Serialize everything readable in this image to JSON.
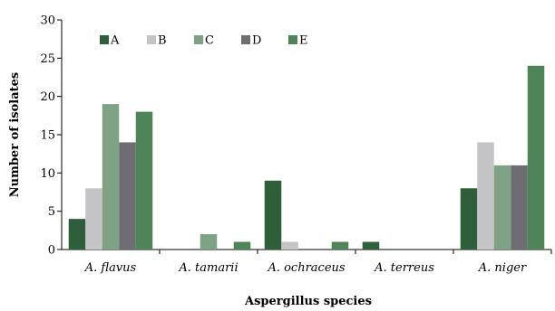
{
  "chart_data": {
    "type": "bar",
    "categories": [
      "A. flavus",
      "A. tamarii",
      "A. ochraceus",
      "A. terreus",
      "A. niger"
    ],
    "series": [
      {
        "name": "A",
        "color": "#2e5e3a",
        "values": [
          4,
          0,
          9,
          1,
          8
        ]
      },
      {
        "name": "B",
        "color": "#c4c4c6",
        "values": [
          8,
          0,
          1,
          0,
          14
        ]
      },
      {
        "name": "C",
        "color": "#7fa284",
        "values": [
          19,
          2,
          0,
          0,
          11
        ]
      },
      {
        "name": "D",
        "color": "#6d6d72",
        "values": [
          14,
          0,
          0,
          0,
          11
        ]
      },
      {
        "name": "E",
        "color": "#4f8458",
        "values": [
          18,
          1,
          1,
          0,
          24
        ]
      }
    ],
    "xlabel": "Aspergillus species",
    "ylabel": "Number of isolates",
    "ylim": [
      0,
      30
    ],
    "yticks": [
      "0",
      "5",
      "10",
      "15",
      "20",
      "25",
      "30"
    ],
    "grid": false,
    "legend_position": "top-left"
  }
}
